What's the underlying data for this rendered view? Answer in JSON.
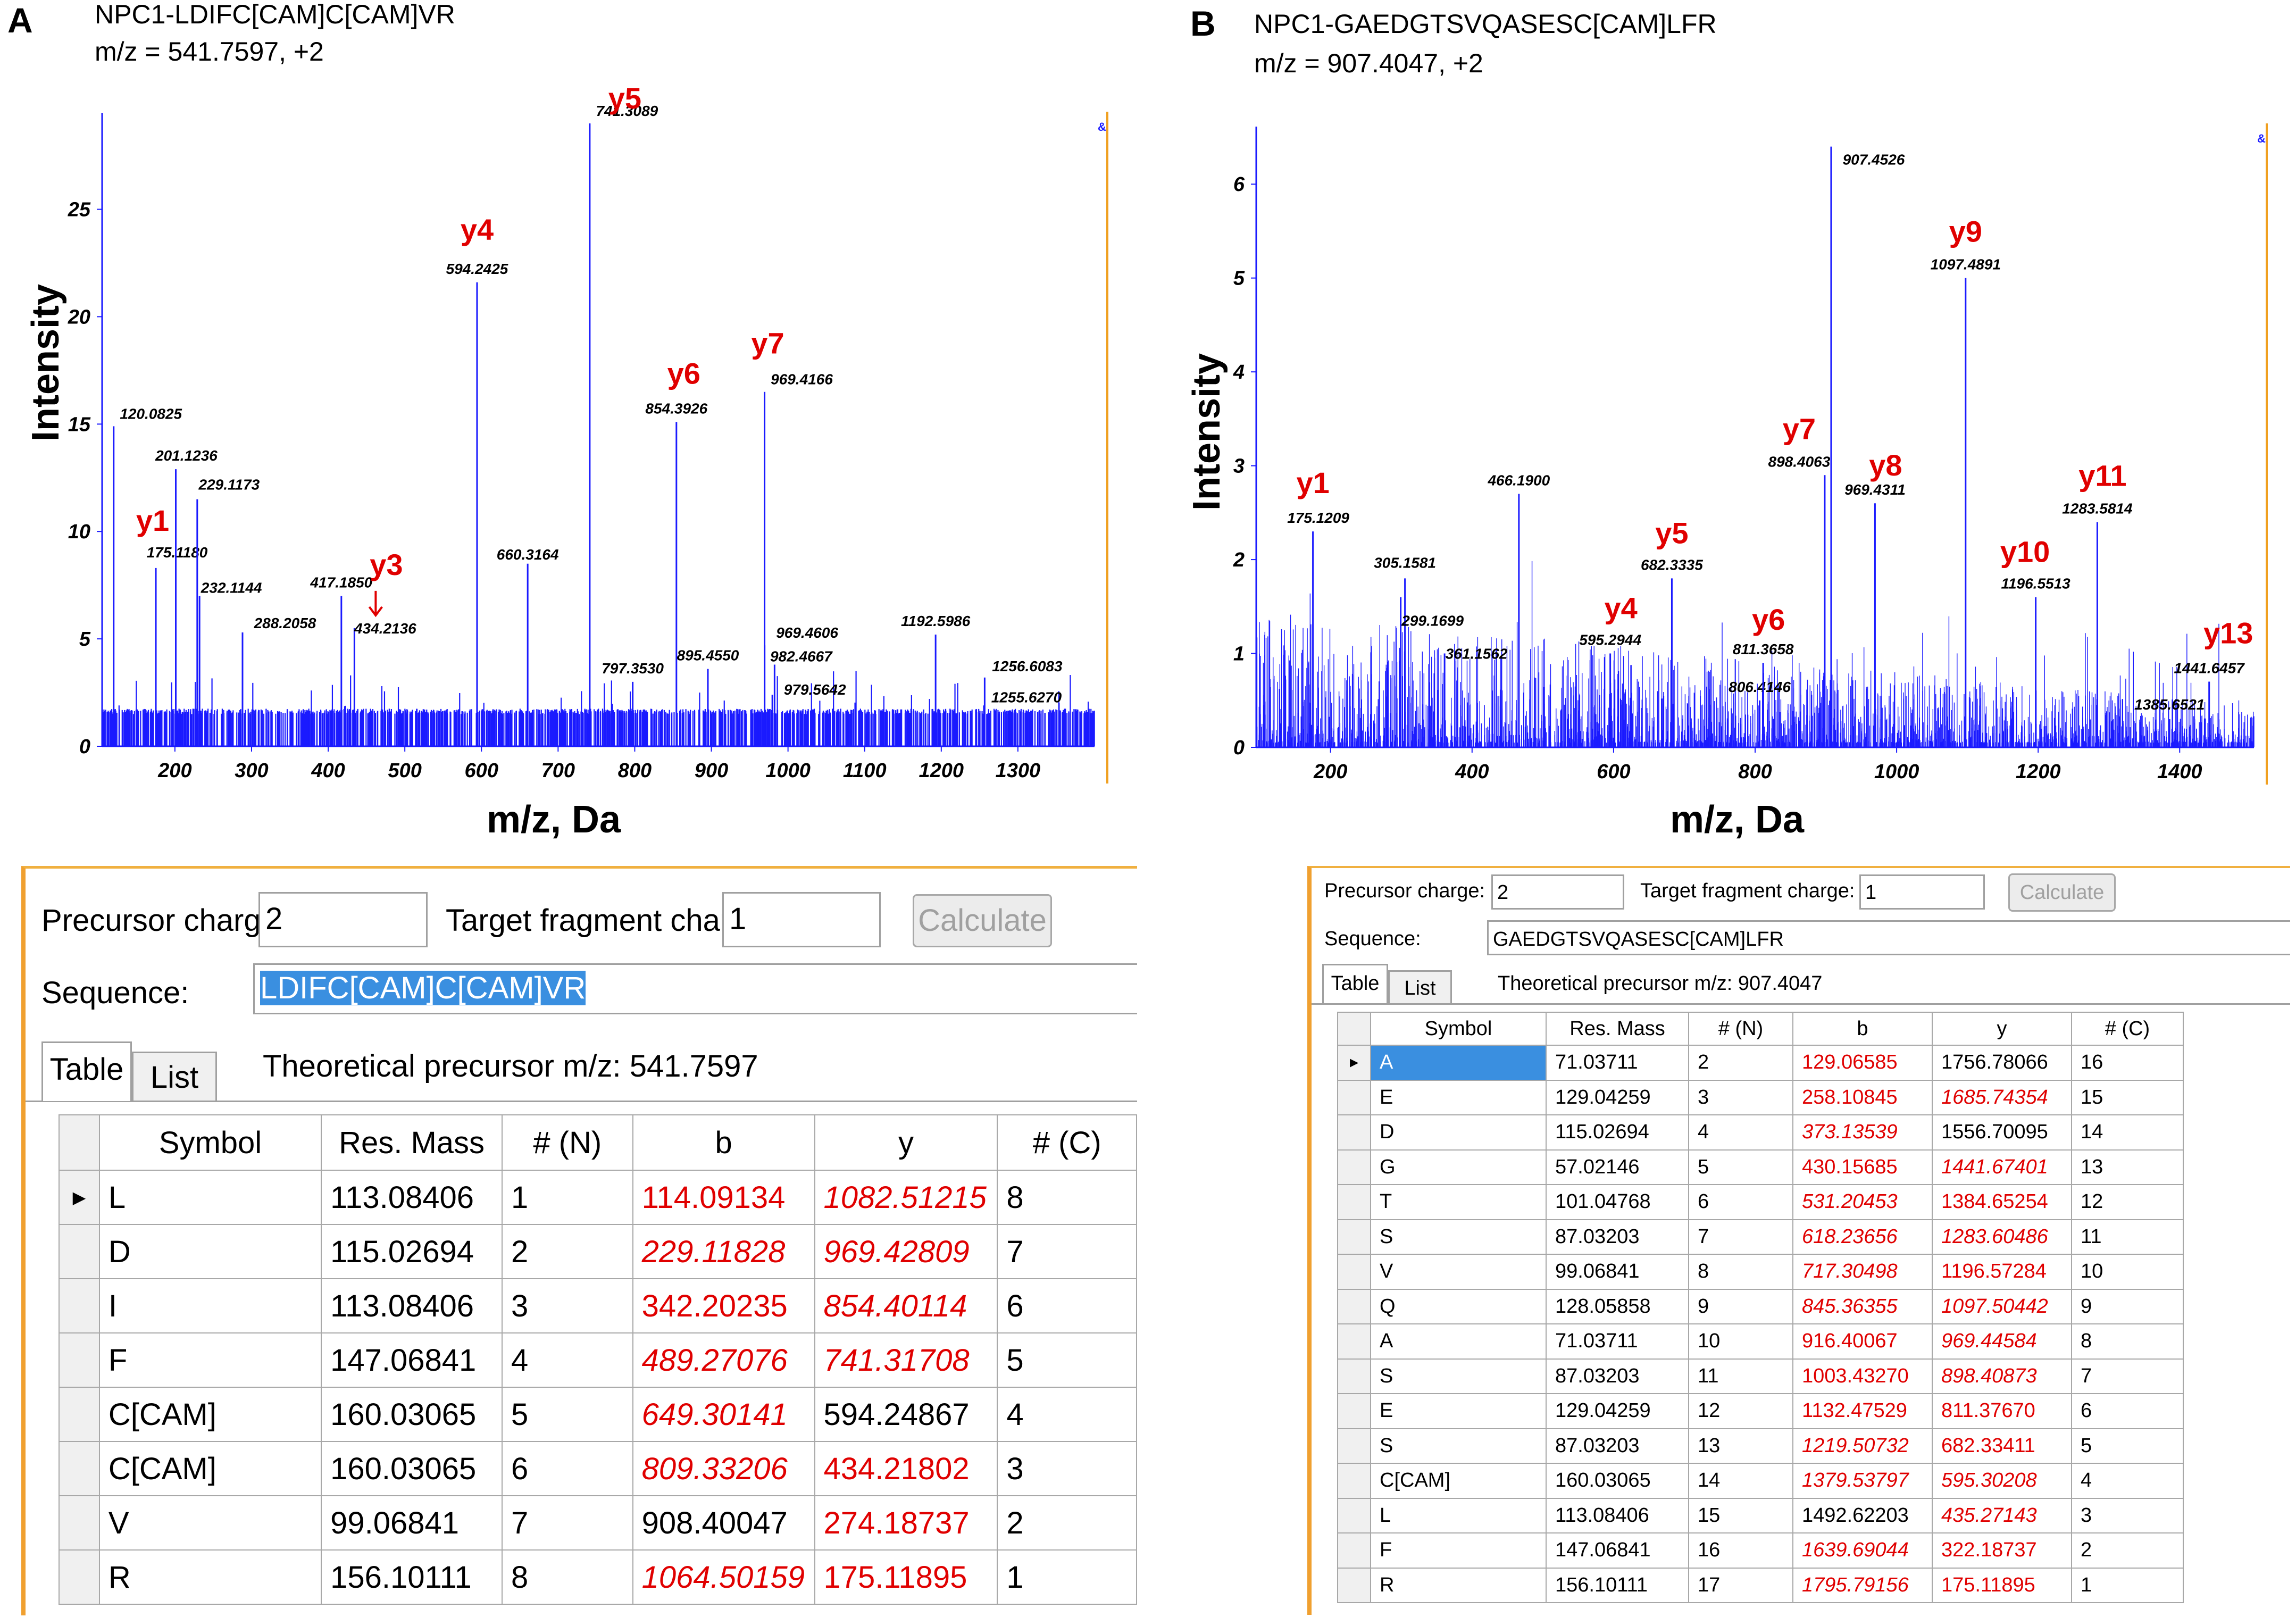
{
  "panels": {
    "A": {
      "letter": "A",
      "title_line1": "NPC1-LDIFC[CAM]C[CAM]VR",
      "title_line2": "m/z = 541.7597, +2"
    },
    "B": {
      "letter": "B",
      "title_line1": "NPC1-GAEDGTSVQASESC[CAM]LFR",
      "title_line2": "m/z = 907.4047, +2"
    }
  },
  "legend_marks": {
    "A": "&",
    "B": "&"
  },
  "chart_data": [
    {
      "type": "bar",
      "id": "A",
      "xlabel": "m/z, Da",
      "ylabel": "Intensity",
      "xlim": [
        105,
        1400
      ],
      "ylim": [
        0,
        29
      ],
      "xticks": [
        200,
        300,
        400,
        500,
        600,
        700,
        800,
        900,
        1000,
        1100,
        1200,
        1300
      ],
      "yticks": [
        0,
        5,
        10,
        15,
        20,
        25
      ],
      "peaks": [
        {
          "mz": 120.0825,
          "intensity": 14.9,
          "label": "120.0825"
        },
        {
          "mz": 175.118,
          "intensity": 8.3,
          "label": "175.1180",
          "ion": "y1"
        },
        {
          "mz": 201.1236,
          "intensity": 12.9,
          "label": "201.1236"
        },
        {
          "mz": 229.1173,
          "intensity": 11.5,
          "label": "229.1173"
        },
        {
          "mz": 232.1144,
          "intensity": 7.0,
          "label": "232.1144"
        },
        {
          "mz": 288.2058,
          "intensity": 5.3,
          "label": "288.2058"
        },
        {
          "mz": 417.185,
          "intensity": 7.0,
          "label": "417.1850"
        },
        {
          "mz": 434.2136,
          "intensity": 5.5,
          "label": "434.2136",
          "ion": "y3"
        },
        {
          "mz": 594.2425,
          "intensity": 21.6,
          "label": "594.2425",
          "ion": "y4"
        },
        {
          "mz": 660.3164,
          "intensity": 8.5,
          "label": "660.3164"
        },
        {
          "mz": 741.3089,
          "intensity": 29.0,
          "label": "741.3089",
          "ion": "y5"
        },
        {
          "mz": 797.353,
          "intensity": 3.0,
          "label": "797.3530"
        },
        {
          "mz": 854.3926,
          "intensity": 15.1,
          "label": "854.3926",
          "ion": "y6"
        },
        {
          "mz": 895.455,
          "intensity": 3.6,
          "label": "895.4550"
        },
        {
          "mz": 969.4166,
          "intensity": 16.5,
          "label": "969.4166",
          "ion": "y7"
        },
        {
          "mz": 969.4606,
          "intensity": 4.7,
          "label": "969.4606"
        },
        {
          "mz": 982.4667,
          "intensity": 3.8,
          "label": "982.4667"
        },
        {
          "mz": 979.5642,
          "intensity": 2.4,
          "label": "979.5642"
        },
        {
          "mz": 1192.5986,
          "intensity": 5.2,
          "label": "1192.5986"
        },
        {
          "mz": 1256.6083,
          "intensity": 3.2,
          "label": "1256.6083"
        },
        {
          "mz": 1255.627,
          "intensity": 1.9,
          "label": "1255.6270"
        }
      ]
    },
    {
      "type": "bar",
      "id": "B",
      "xlabel": "m/z, Da",
      "ylabel": "Intensity",
      "xlim": [
        95,
        1505
      ],
      "ylim": [
        0,
        6.5
      ],
      "xticks": [
        200,
        400,
        600,
        800,
        1000,
        1200,
        1400
      ],
      "yticks": [
        0,
        1,
        2,
        3,
        4,
        5,
        6
      ],
      "peaks": [
        {
          "mz": 175.1209,
          "intensity": 2.3,
          "label": "175.1209",
          "ion": "y1"
        },
        {
          "mz": 305.1581,
          "intensity": 1.8,
          "label": "305.1581"
        },
        {
          "mz": 299.1699,
          "intensity": 1.6,
          "label": "299.1699"
        },
        {
          "mz": 361.1562,
          "intensity": 1.0,
          "label": "361.1562"
        },
        {
          "mz": 466.19,
          "intensity": 2.7,
          "label": "466.1900"
        },
        {
          "mz": 595.2944,
          "intensity": 1.0,
          "label": "595.2944",
          "ion": "y4"
        },
        {
          "mz": 682.3335,
          "intensity": 1.8,
          "label": "682.3335",
          "ion": "y5"
        },
        {
          "mz": 806.4146,
          "intensity": 0.5,
          "label": "806.4146"
        },
        {
          "mz": 811.3658,
          "intensity": 0.9,
          "label": "811.3658",
          "ion": "y6"
        },
        {
          "mz": 898.4063,
          "intensity": 2.9,
          "label": "898.4063",
          "ion": "y7"
        },
        {
          "mz": 907.4526,
          "intensity": 6.4,
          "label": "907.4526"
        },
        {
          "mz": 969.4311,
          "intensity": 2.6,
          "label": "969.4311",
          "ion": "y8"
        },
        {
          "mz": 1097.4891,
          "intensity": 5.0,
          "label": "1097.4891",
          "ion": "y9"
        },
        {
          "mz": 1196.5513,
          "intensity": 1.6,
          "label": "1196.5513",
          "ion": "y10"
        },
        {
          "mz": 1283.5814,
          "intensity": 2.4,
          "label": "1283.5814",
          "ion": "y11"
        },
        {
          "mz": 1385.6521,
          "intensity": 0.3,
          "label": "1385.6521"
        },
        {
          "mz": 1441.6457,
          "intensity": 0.7,
          "label": "1441.6457",
          "ion": "y13"
        }
      ]
    }
  ],
  "calculators": {
    "A": {
      "precursor_charge_label": "Precursor charge:",
      "precursor_charge": "2",
      "target_fragment_label": "Target fragment charge:",
      "target_fragment_charge": "1",
      "calculate_label": "Calculate",
      "sequence_label": "Sequence:",
      "sequence": "LDIFC[CAM]C[CAM]VR",
      "tab_table": "Table",
      "tab_list": "List",
      "theoretical": "Theoretical precursor m/z: 541.7597",
      "columns": [
        "Symbol",
        "Res. Mass",
        "# (N)",
        "b",
        "y",
        "# (C)"
      ],
      "rows": [
        [
          "L",
          "113.08406",
          "1",
          "114.09134",
          "1082.51215",
          "8"
        ],
        [
          "D",
          "115.02694",
          "2",
          "229.11828",
          "969.42809",
          "7"
        ],
        [
          "I",
          "113.08406",
          "3",
          "342.20235",
          "854.40114",
          "6"
        ],
        [
          "F",
          "147.06841",
          "4",
          "489.27076",
          "741.31708",
          "5"
        ],
        [
          "C[CAM]",
          "160.03065",
          "5",
          "649.30141",
          "594.24867",
          "4"
        ],
        [
          "C[CAM]",
          "160.03065",
          "6",
          "809.33206",
          "434.21802",
          "3"
        ],
        [
          "V",
          "99.06841",
          "7",
          "908.40047",
          "274.18737",
          "2"
        ],
        [
          "R",
          "156.10111",
          "8",
          "1064.50159",
          "175.11895",
          "1"
        ]
      ]
    },
    "B": {
      "precursor_charge_label": "Precursor charge:",
      "precursor_charge": "2",
      "target_fragment_label": "Target fragment charge:",
      "target_fragment_charge": "1",
      "calculate_label": "Calculate",
      "sequence_label": "Sequence:",
      "sequence": "GAEDGTSVQASESC[CAM]LFR",
      "tab_table": "Table",
      "tab_list": "List",
      "theoretical": "Theoretical precursor m/z: 907.4047",
      "columns": [
        "Symbol",
        "Res. Mass",
        "# (N)",
        "b",
        "y",
        "# (C)"
      ],
      "rows": [
        [
          "A",
          "71.03711",
          "2",
          "129.06585",
          "1756.78066",
          "16"
        ],
        [
          "E",
          "129.04259",
          "3",
          "258.10845",
          "1685.74354",
          "15"
        ],
        [
          "D",
          "115.02694",
          "4",
          "373.13539",
          "1556.70095",
          "14"
        ],
        [
          "G",
          "57.02146",
          "5",
          "430.15685",
          "1441.67401",
          "13"
        ],
        [
          "T",
          "101.04768",
          "6",
          "531.20453",
          "1384.65254",
          "12"
        ],
        [
          "S",
          "87.03203",
          "7",
          "618.23656",
          "1283.60486",
          "11"
        ],
        [
          "V",
          "99.06841",
          "8",
          "717.30498",
          "1196.57284",
          "10"
        ],
        [
          "Q",
          "128.05858",
          "9",
          "845.36355",
          "1097.50442",
          "9"
        ],
        [
          "A",
          "71.03711",
          "10",
          "916.40067",
          "969.44584",
          "8"
        ],
        [
          "S",
          "87.03203",
          "11",
          "1003.43270",
          "898.40873",
          "7"
        ],
        [
          "E",
          "129.04259",
          "12",
          "1132.47529",
          "811.37670",
          "6"
        ],
        [
          "S",
          "87.03203",
          "13",
          "1219.50732",
          "682.33411",
          "5"
        ],
        [
          "C[CAM]",
          "160.03065",
          "14",
          "1379.53797",
          "595.30208",
          "4"
        ],
        [
          "L",
          "113.08406",
          "15",
          "1492.62203",
          "435.27143",
          "3"
        ],
        [
          "F",
          "147.06841",
          "16",
          "1639.69044",
          "322.18737",
          "2"
        ],
        [
          "R",
          "156.10111",
          "17",
          "1795.79156",
          "175.11895",
          "1"
        ]
      ]
    }
  },
  "cell_styles": {
    "A": {
      "b": [
        "b",
        "bi",
        "b",
        "bi",
        "bi",
        "bi",
        "n",
        "bi"
      ],
      "y": [
        "i",
        "bi",
        "bi",
        "bi",
        "n",
        "b",
        "b",
        "b"
      ]
    },
    "B": {
      "b": [
        "b",
        "b",
        "bi",
        "b",
        "bi",
        "bi",
        "bi",
        "bi",
        "b",
        "b",
        "b",
        "bi",
        "i",
        "n",
        "i",
        "i"
      ],
      "y": [
        "n",
        "i",
        "n",
        "bi",
        "b",
        "bi",
        "b",
        "bi",
        "bi",
        "bi",
        "b",
        "b",
        "bi",
        "bi",
        "b",
        "b"
      ]
    }
  }
}
